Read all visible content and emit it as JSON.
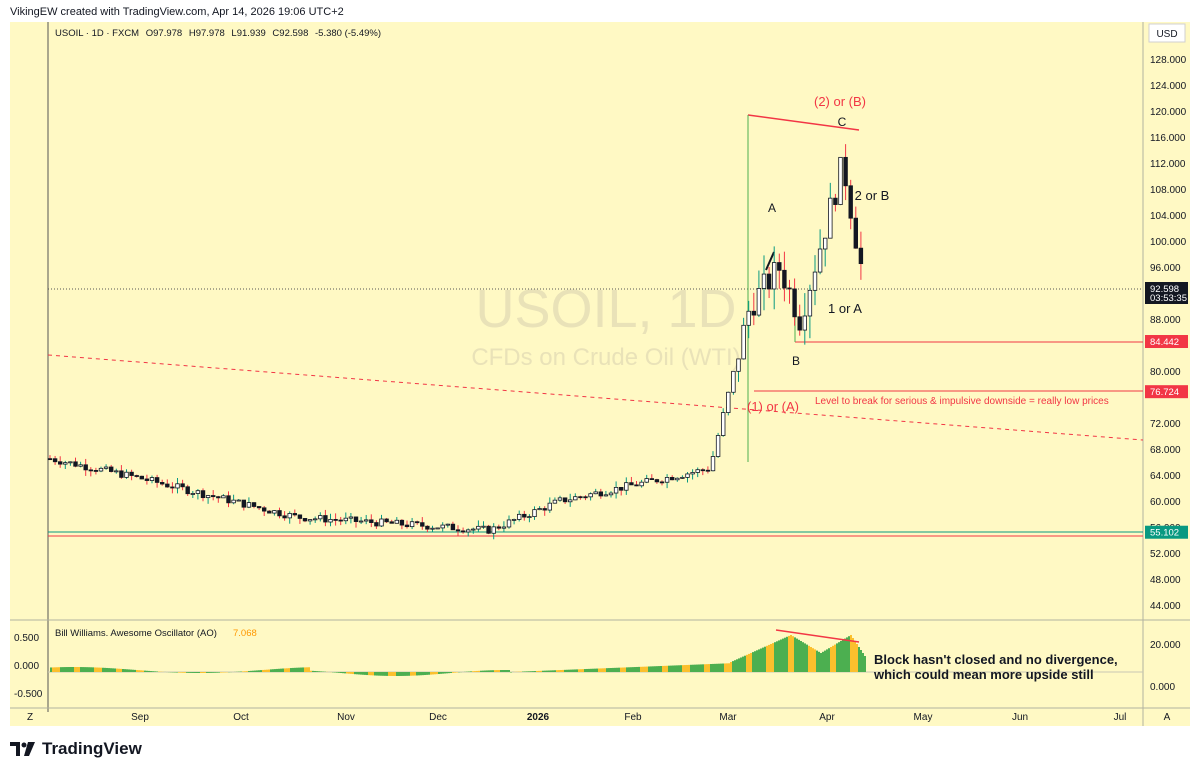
{
  "header": {
    "text": "VikingEW created with TradingView.com, Apr 14, 2026 19:06 UTC+2"
  },
  "legend": {
    "symbol": "USOIL · 1D · FXCM",
    "o_label": "O",
    "o": "97.978",
    "h_label": "H",
    "h": "97.978",
    "l_label": "L",
    "l": "91.939",
    "c_label": "C",
    "c": "92.598",
    "chg": "-5.380 (-5.49%)"
  },
  "currency": "USD",
  "watermark": {
    "symbol": "USOIL, 1D",
    "desc": "CFDs on Crude Oil (WTI)"
  },
  "price_axis": [
    "128.000",
    "124.000",
    "120.000",
    "116.000",
    "112.000",
    "108.000",
    "104.000",
    "100.000",
    "96.000",
    "88.000",
    "80.000",
    "72.000",
    "68.000",
    "64.000",
    "60.000",
    "56.000",
    "52.000",
    "48.000",
    "44.000"
  ],
  "price_badges": [
    {
      "label": "92.598",
      "sub": "03:53:35",
      "bg": "#131722",
      "fg": "#ffffff"
    },
    {
      "label": "84.442",
      "bg": "#f23645",
      "fg": "#ffffff"
    },
    {
      "label": "76.724",
      "bg": "#f23645",
      "fg": "#ffffff"
    },
    {
      "label": "55.102",
      "bg": "#089981",
      "fg": "#ffffff"
    }
  ],
  "annotations": {
    "wave_2b": "(2) or (B)",
    "wave_c": "C",
    "wave_a": "A",
    "wave_2orb": "2 or B",
    "wave_1ora": "1 or A",
    "wave_b": "B",
    "wave_1a": "(1) or (A)",
    "level_text": "Level to break for serious & impulsive downside = really low prices"
  },
  "oscillator": {
    "title": "Bill Williams. Awesome Oscillator (AO)",
    "value": "7.068",
    "left_axis": [
      "0.500",
      "0.000",
      "-0.500"
    ],
    "right_axis": [
      "20.000",
      "0.000"
    ],
    "note_line1": "Block hasn't closed and no divergence,",
    "note_line2": "which could mean more upside still"
  },
  "time_axis": [
    "Sep",
    "Oct",
    "Nov",
    "Dec",
    "2026",
    "Feb",
    "Mar",
    "Apr",
    "May",
    "Jun",
    "Jul"
  ],
  "corner_left": "Z",
  "corner_right": "A",
  "brand": "TradingView",
  "colors": {
    "up": "#089981",
    "down": "#f23645",
    "bg": "#fff9c4",
    "annot_red": "#f23645",
    "ao_green": "#4caf50",
    "ao_yellow": "#fbc02d"
  },
  "chart_data": {
    "type": "candlestick",
    "ylim": [
      42,
      130
    ],
    "key_points": [
      {
        "date": "2025-07-14",
        "price": 66.5
      },
      {
        "date": "2025-09-01",
        "price": 63.5
      },
      {
        "date": "2025-10-20",
        "price": 57.5
      },
      {
        "date": "2025-12-16",
        "price": 55.5
      },
      {
        "date": "2026-01-20",
        "price": 60.0
      },
      {
        "date": "2026-02-25",
        "price": 65.0
      },
      {
        "date": "2026-03-06",
        "price": 90.0
      },
      {
        "date": "2026-03-10",
        "price": 96.0
      },
      {
        "date": "2026-03-19",
        "price": 88.0
      },
      {
        "date": "2026-04-07",
        "price": 112.0
      },
      {
        "date": "2026-04-14",
        "price": 92.6
      }
    ],
    "levels": [
      84.442,
      76.724,
      55.102
    ]
  }
}
